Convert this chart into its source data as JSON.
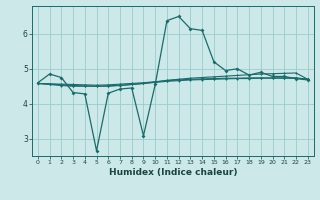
{
  "xlabel": "Humidex (Indice chaleur)",
  "bg_color": "#cce8e8",
  "line_color": "#1a6b6b",
  "grid_color": "#99cccc",
  "xlim": [
    -0.5,
    23.5
  ],
  "ylim": [
    2.5,
    6.8
  ],
  "yticks": [
    3,
    4,
    5,
    6
  ],
  "xticks": [
    0,
    1,
    2,
    3,
    4,
    5,
    6,
    7,
    8,
    9,
    10,
    11,
    12,
    13,
    14,
    15,
    16,
    17,
    18,
    19,
    20,
    21,
    22,
    23
  ],
  "series": [
    [
      4.6,
      4.85,
      4.75,
      4.32,
      4.28,
      2.65,
      4.3,
      4.42,
      4.45,
      3.08,
      4.55,
      6.38,
      6.5,
      6.15,
      6.1,
      5.2,
      4.95,
      5.0,
      4.82,
      4.9,
      4.78,
      4.78,
      4.72,
      4.68
    ],
    [
      4.58,
      4.55,
      4.52,
      4.5,
      4.5,
      4.5,
      4.5,
      4.52,
      4.55,
      4.58,
      4.62,
      4.67,
      4.7,
      4.73,
      4.75,
      4.77,
      4.79,
      4.81,
      4.83,
      4.85,
      4.86,
      4.87,
      4.88,
      4.7
    ],
    [
      4.58,
      4.56,
      4.54,
      4.52,
      4.51,
      4.5,
      4.51,
      4.53,
      4.55,
      4.58,
      4.61,
      4.64,
      4.66,
      4.68,
      4.69,
      4.7,
      4.71,
      4.72,
      4.72,
      4.73,
      4.73,
      4.73,
      4.73,
      4.7
    ],
    [
      4.58,
      4.57,
      4.56,
      4.55,
      4.54,
      4.53,
      4.54,
      4.56,
      4.58,
      4.6,
      4.63,
      4.66,
      4.68,
      4.7,
      4.71,
      4.72,
      4.73,
      4.73,
      4.74,
      4.74,
      4.74,
      4.74,
      4.74,
      4.7
    ]
  ]
}
